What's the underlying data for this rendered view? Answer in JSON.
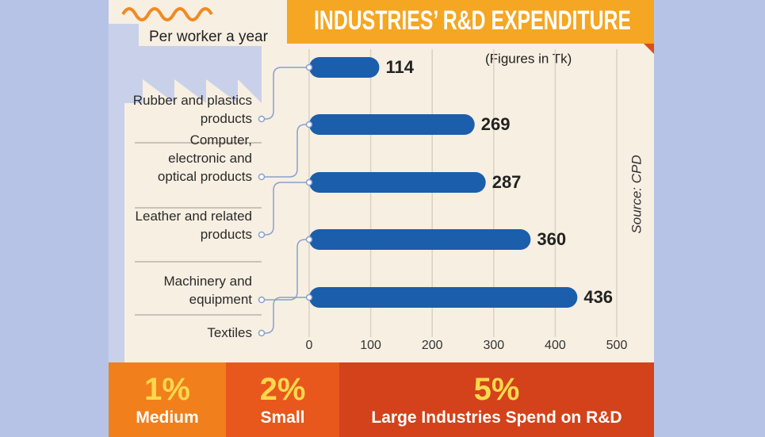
{
  "chart_data": {
    "type": "barh",
    "title": "INDUSTRIES’ R&D EXPENDITURE",
    "subtitle": "Per worker a year",
    "unit_note": "(Figures in Tk)",
    "source": "Source: CPD",
    "categories": [
      "Rubber and plastics products",
      "Computer, electronic and optical products",
      "Leather and related products",
      "Machinery and equipment",
      "Textiles"
    ],
    "values": [
      114,
      269,
      287,
      360,
      436
    ],
    "color": "#1b5eab",
    "xlim": [
      0,
      500
    ],
    "xticks": [
      0,
      100,
      200,
      300,
      400,
      500
    ],
    "grid": true
  },
  "footer": [
    {
      "percent": "1%",
      "label": "Medium"
    },
    {
      "percent": "2%",
      "label": "Small"
    },
    {
      "percent": "5%",
      "label": "Large Industries Spend on R&D"
    }
  ]
}
